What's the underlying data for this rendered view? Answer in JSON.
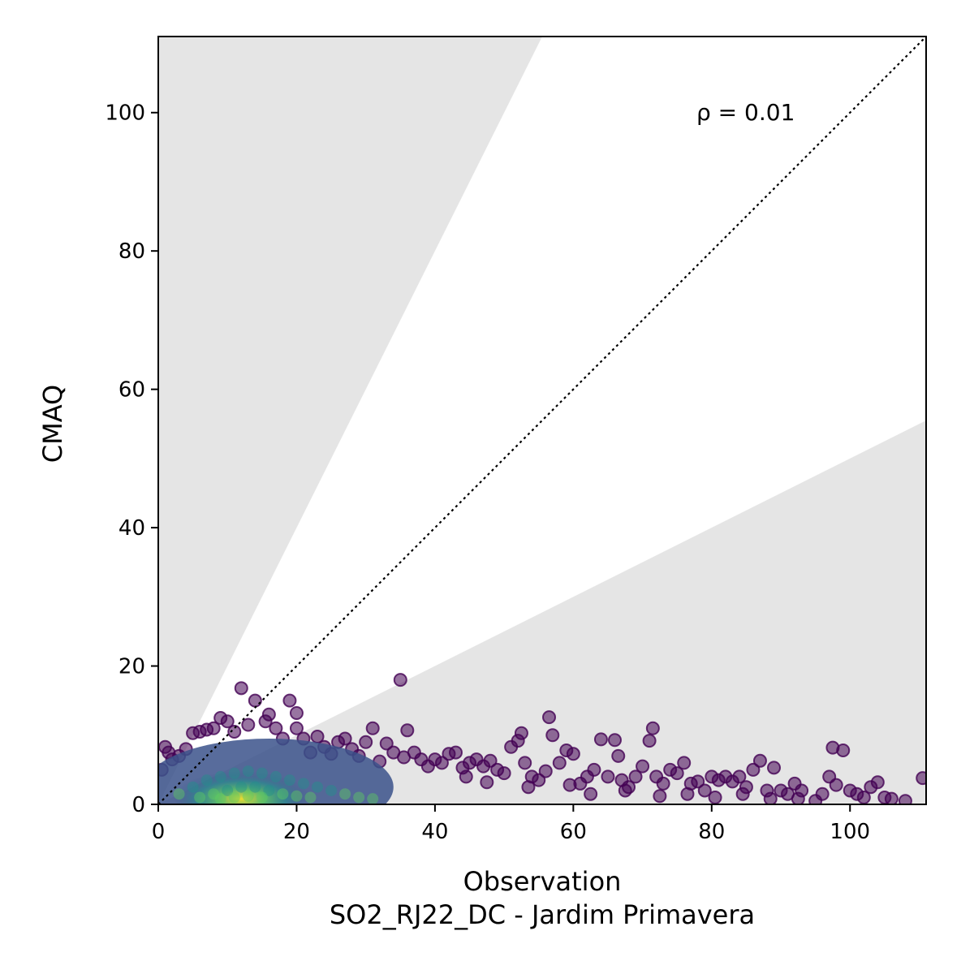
{
  "chart_data": {
    "type": "scatter",
    "xlabel": "Observation",
    "subtitle": "SO2_RJ22_DC - Jardim Primavera",
    "ylabel": "CMAQ",
    "annotation": "ρ = 0.01",
    "xlim": [
      0,
      111
    ],
    "ylim": [
      0,
      111
    ],
    "xticks": [
      "0",
      "20",
      "40",
      "60",
      "80",
      "100"
    ],
    "yticks": [
      "0",
      "20",
      "40",
      "60",
      "80",
      "100"
    ],
    "xtick_values": [
      0,
      20,
      40,
      60,
      80,
      100
    ],
    "ytick_values": [
      0,
      20,
      40,
      60,
      80,
      100
    ],
    "reference_line": {
      "style": "dotted",
      "slope": 1,
      "color": "#000000"
    },
    "acceptance_band": {
      "upper_slope": 2,
      "lower_slope": 0.5,
      "outside_color": "#e5e5e5"
    },
    "colormap": [
      "#440154",
      "#3b528b",
      "#21918c",
      "#5ec962",
      "#fde725"
    ],
    "grid": false,
    "points": [
      [
        12,
        16.8
      ],
      [
        14,
        15
      ],
      [
        19,
        15
      ],
      [
        35,
        18
      ],
      [
        20,
        13.2
      ],
      [
        16,
        13
      ],
      [
        15.5,
        12
      ],
      [
        9,
        12.5
      ],
      [
        10,
        12
      ],
      [
        8,
        11
      ],
      [
        6,
        10.5
      ],
      [
        5,
        10.3
      ],
      [
        7,
        10.8
      ],
      [
        13,
        11.5
      ],
      [
        17,
        11
      ],
      [
        20,
        11
      ],
      [
        23,
        9.8
      ],
      [
        27,
        9.5
      ],
      [
        30,
        9
      ],
      [
        31,
        11
      ],
      [
        36,
        10.7
      ],
      [
        33,
        8.8
      ],
      [
        34,
        7.5
      ],
      [
        28,
        8
      ],
      [
        26,
        9
      ],
      [
        25,
        7.3
      ],
      [
        22,
        7.5
      ],
      [
        21,
        9.5
      ],
      [
        37,
        7.5
      ],
      [
        38,
        6.5
      ],
      [
        39,
        5.5
      ],
      [
        40,
        6.5
      ],
      [
        41,
        6
      ],
      [
        42,
        7.3
      ],
      [
        43,
        7.5
      ],
      [
        44,
        5.3
      ],
      [
        45,
        6
      ],
      [
        46,
        6.5
      ],
      [
        47,
        5.5
      ],
      [
        48,
        6.3
      ],
      [
        49,
        5
      ],
      [
        50,
        4.5
      ],
      [
        51,
        8.3
      ],
      [
        52,
        9.2
      ],
      [
        52.5,
        10.3
      ],
      [
        53,
        6
      ],
      [
        54,
        4
      ],
      [
        55,
        3.5
      ],
      [
        56,
        4.8
      ],
      [
        56.5,
        12.6
      ],
      [
        57,
        10
      ],
      [
        58,
        6
      ],
      [
        59,
        7.8
      ],
      [
        60,
        7.3
      ],
      [
        61,
        3
      ],
      [
        62,
        4
      ],
      [
        63,
        5
      ],
      [
        64,
        9.4
      ],
      [
        65,
        4
      ],
      [
        66,
        9.3
      ],
      [
        66.5,
        7
      ],
      [
        67,
        3.5
      ],
      [
        68,
        2.5
      ],
      [
        69,
        4
      ],
      [
        70,
        5.5
      ],
      [
        71,
        9.2
      ],
      [
        71.5,
        11
      ],
      [
        72,
        4
      ],
      [
        73,
        3
      ],
      [
        74,
        5
      ],
      [
        75,
        4.5
      ],
      [
        76,
        6
      ],
      [
        77,
        3
      ],
      [
        78,
        3.3
      ],
      [
        79,
        2
      ],
      [
        80,
        4
      ],
      [
        81,
        3.5
      ],
      [
        82,
        4
      ],
      [
        83,
        3.3
      ],
      [
        84,
        4
      ],
      [
        85,
        2.5
      ],
      [
        86,
        5
      ],
      [
        87,
        6.3
      ],
      [
        88,
        2
      ],
      [
        89,
        5.3
      ],
      [
        90,
        2
      ],
      [
        91,
        1.5
      ],
      [
        92,
        3
      ],
      [
        93,
        2
      ],
      [
        95,
        0.5
      ],
      [
        96,
        1.5
      ],
      [
        97,
        4
      ],
      [
        97.5,
        8.2
      ],
      [
        98,
        2.8
      ],
      [
        99,
        7.8
      ],
      [
        100,
        2
      ],
      [
        101,
        1.5
      ],
      [
        102,
        1
      ],
      [
        103,
        2.5
      ],
      [
        104,
        3.2
      ],
      [
        105,
        1
      ],
      [
        106,
        0.8
      ],
      [
        108,
        0.5
      ],
      [
        110.5,
        3.8
      ],
      [
        1,
        8.3
      ],
      [
        1.5,
        7.5
      ],
      [
        0.5,
        5
      ],
      [
        2,
        6.5
      ],
      [
        3,
        7
      ],
      [
        4,
        8
      ],
      [
        11,
        10.5
      ],
      [
        18,
        9.5
      ],
      [
        24,
        8.3
      ],
      [
        29,
        7
      ],
      [
        32,
        6.2
      ],
      [
        35.5,
        6.8
      ],
      [
        44.5,
        4
      ],
      [
        47.5,
        3.2
      ],
      [
        53.5,
        2.5
      ],
      [
        59.5,
        2.8
      ],
      [
        62.5,
        1.5
      ],
      [
        67.5,
        2
      ],
      [
        72.5,
        1.2
      ],
      [
        76.5,
        1.5
      ],
      [
        80.5,
        1
      ],
      [
        84.5,
        1.5
      ],
      [
        88.5,
        0.8
      ],
      [
        92.5,
        0.8
      ]
    ],
    "density_core": [
      [
        3,
        1.5
      ],
      [
        5,
        2.5
      ],
      [
        7,
        3.5
      ],
      [
        9,
        4
      ],
      [
        11,
        4.5
      ],
      [
        13,
        4.8
      ],
      [
        15,
        4.5
      ],
      [
        17,
        4
      ],
      [
        19,
        3.5
      ],
      [
        21,
        3
      ],
      [
        23,
        2.5
      ],
      [
        25,
        2
      ],
      [
        27,
        1.5
      ],
      [
        29,
        1
      ],
      [
        31,
        0.8
      ],
      [
        6,
        1
      ],
      [
        8,
        1.5
      ],
      [
        10,
        2
      ],
      [
        12,
        2.5
      ],
      [
        14,
        2.5
      ],
      [
        16,
        2
      ],
      [
        18,
        1.5
      ],
      [
        20,
        1.2
      ],
      [
        22,
        1
      ],
      [
        9,
        0.8
      ],
      [
        11,
        1
      ],
      [
        13,
        1.2
      ],
      [
        15,
        1
      ]
    ]
  }
}
